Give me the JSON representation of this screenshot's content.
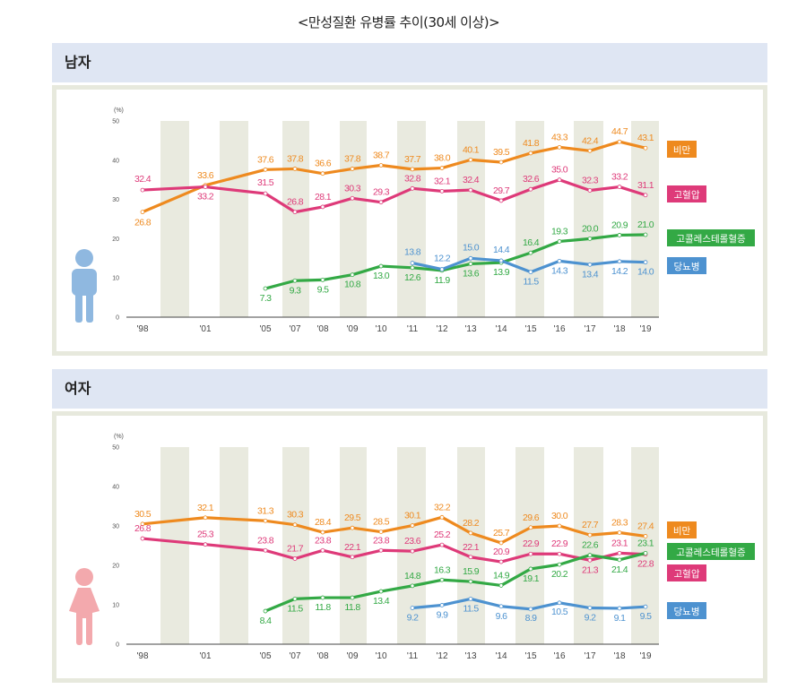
{
  "title": "<만성질환 유병률 추이(30세 이상)>",
  "panels": [
    {
      "label": "남자"
    },
    {
      "label": "여자"
    }
  ],
  "colors": {
    "obesity": "#ee8a1f",
    "hypertension": "#de3a79",
    "cholesterol": "#33a945",
    "diabetes": "#4d92d0",
    "shade": "#e9eadf"
  },
  "icons": {
    "male": "male-person-icon",
    "female": "female-person-icon"
  },
  "chart_data": [
    {
      "type": "line",
      "title": "남자",
      "ylabel": "(%)",
      "ylim": [
        0,
        50
      ],
      "yticks": [
        0,
        10,
        20,
        30,
        40,
        50
      ],
      "categories": [
        "'98",
        "'01",
        "'05",
        "'07",
        "'08",
        "'09",
        "'10",
        "'11",
        "'12",
        "'13",
        "'14",
        "'15",
        "'16",
        "'17",
        "'18",
        "'19"
      ],
      "series": [
        {
          "name": "비만",
          "values": [
            26.8,
            33.6,
            37.6,
            37.8,
            36.6,
            37.8,
            38.7,
            37.7,
            38.0,
            40.1,
            39.5,
            41.8,
            43.3,
            42.4,
            44.7,
            43.1
          ]
        },
        {
          "name": "고혈압",
          "values": [
            32.4,
            33.2,
            31.5,
            26.8,
            28.1,
            30.3,
            29.3,
            32.8,
            32.1,
            32.4,
            29.7,
            32.6,
            35.0,
            32.3,
            33.2,
            31.1
          ]
        },
        {
          "name": "고콜레스테롤혈증",
          "values": [
            null,
            null,
            7.3,
            9.3,
            9.5,
            10.8,
            13.0,
            12.6,
            11.9,
            13.6,
            13.9,
            16.4,
            19.3,
            20.0,
            20.9,
            21.0
          ]
        },
        {
          "name": "당뇨병",
          "values": [
            null,
            null,
            null,
            null,
            null,
            null,
            null,
            13.8,
            12.2,
            15.0,
            14.4,
            11.5,
            14.3,
            13.4,
            14.2,
            14.0
          ]
        }
      ]
    },
    {
      "type": "line",
      "title": "여자",
      "ylabel": "(%)",
      "ylim": [
        0,
        50
      ],
      "yticks": [
        0,
        10,
        20,
        30,
        40,
        50
      ],
      "categories": [
        "'98",
        "'01",
        "'05",
        "'07",
        "'08",
        "'09",
        "'10",
        "'11",
        "'12",
        "'13",
        "'14",
        "'15",
        "'16",
        "'17",
        "'18",
        "'19"
      ],
      "series": [
        {
          "name": "비만",
          "values": [
            30.5,
            32.1,
            31.3,
            30.3,
            28.4,
            29.5,
            28.5,
            30.1,
            32.2,
            28.2,
            25.7,
            29.6,
            30.0,
            27.7,
            28.3,
            27.4
          ]
        },
        {
          "name": "고혈압",
          "values": [
            26.8,
            25.3,
            23.8,
            21.7,
            23.8,
            22.1,
            23.8,
            23.6,
            25.2,
            22.1,
            20.9,
            22.9,
            22.9,
            21.3,
            23.1,
            22.8
          ]
        },
        {
          "name": "고콜레스테롤혈증",
          "values": [
            null,
            null,
            8.4,
            11.5,
            11.8,
            11.8,
            13.4,
            14.8,
            16.3,
            15.9,
            14.9,
            19.1,
            20.2,
            22.6,
            21.4,
            23.1
          ]
        },
        {
          "name": "당뇨병",
          "values": [
            null,
            null,
            null,
            null,
            null,
            null,
            null,
            9.2,
            9.9,
            11.5,
            9.6,
            8.9,
            10.5,
            9.2,
            9.1,
            9.5
          ]
        }
      ]
    }
  ],
  "layout_hints": {
    "panel0": {
      "legend_order": [
        "비만",
        "고혈압",
        "고콜레스테롤혈증",
        "당뇨병"
      ]
    },
    "panel1": {
      "legend_order": [
        "비만",
        "고콜레스테롤혈증",
        "고혈압",
        "당뇨병"
      ]
    }
  }
}
